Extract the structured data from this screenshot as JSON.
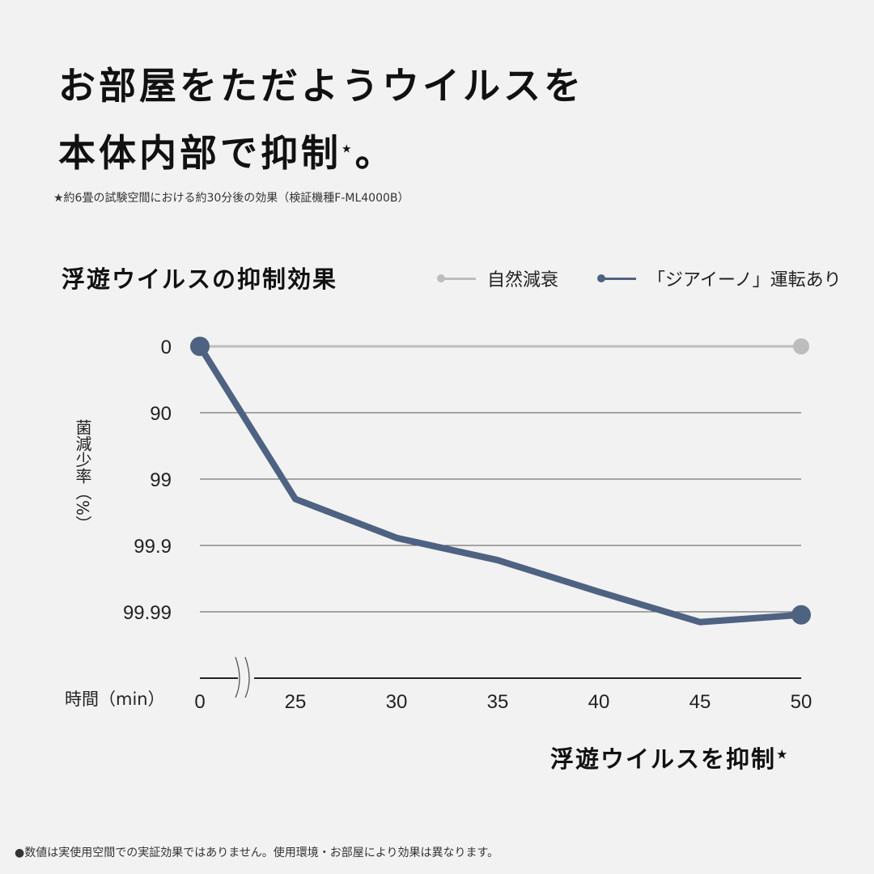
{
  "headline": {
    "line1": "お部屋をただようウイルスを",
    "line2": "本体内部で抑制",
    "line2_star": "★",
    "line2_end": "。"
  },
  "footnote_top": "★約6畳の試験空間における約30分後の効果（検証機種F-ML4000B）",
  "footnote_bottom": "●数値は実使用空間での実証効果ではありません。使用環境・お部屋により効果は異なります。",
  "chart_data": {
    "type": "line",
    "title": "浮遊ウイルスの抑制効果",
    "ylabel": "菌減少率（%）",
    "xlabel": "時間（min）",
    "x": [
      0,
      25,
      30,
      35,
      40,
      45,
      50
    ],
    "x_ticks": [
      "0",
      "25",
      "30",
      "35",
      "40",
      "45",
      "50"
    ],
    "x_axis_break": "between 0 and 25",
    "y_ticks": [
      "0",
      "90",
      "99",
      "99.9",
      "99.99"
    ],
    "y_scale": "log reduction (inverted)",
    "grid": true,
    "legend_placement": "top-right",
    "series": [
      {
        "name": "自然減衰",
        "color": "#bdbdbd",
        "x": [
          0,
          50
        ],
        "values": [
          0,
          0
        ]
      },
      {
        "name": "「ジアイーノ」運転あり",
        "color": "#4e6282",
        "x": [
          0,
          25,
          30,
          35,
          40,
          45,
          50
        ],
        "values": [
          0,
          99.5,
          99.87,
          99.94,
          99.98,
          99.993,
          99.991
        ]
      }
    ],
    "annotation": "浮遊ウイルスを抑制",
    "annotation_star": "★"
  }
}
